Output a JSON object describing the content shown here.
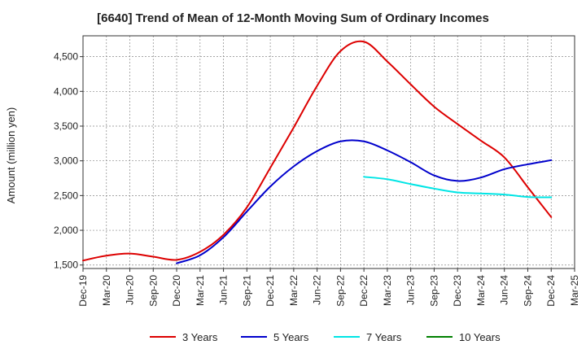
{
  "chart_data": {
    "type": "line",
    "title": "[6640]  Trend of Mean of 12-Month Moving Sum of Ordinary Incomes",
    "xlabel": "",
    "ylabel": "Amount (million yen)",
    "ylim": [
      1450,
      4800
    ],
    "yticks": [
      1500,
      2000,
      2500,
      3000,
      3500,
      4000,
      4500
    ],
    "ytick_labels": [
      "1,500",
      "2,000",
      "2,500",
      "3,000",
      "3,500",
      "4,000",
      "4,500"
    ],
    "categories": [
      "Dec-19",
      "Mar-20",
      "Jun-20",
      "Sep-20",
      "Dec-20",
      "Mar-21",
      "Jun-21",
      "Sep-21",
      "Dec-21",
      "Mar-22",
      "Jun-22",
      "Sep-22",
      "Dec-22",
      "Mar-23",
      "Jun-23",
      "Sep-23",
      "Dec-23",
      "Mar-24",
      "Jun-24",
      "Sep-24",
      "Dec-24",
      "Mar-25"
    ],
    "grid": true,
    "legend_position": "bottom",
    "series": [
      {
        "name": "3 Years",
        "color": "#dd0000",
        "values": [
          1565,
          1635,
          1665,
          1620,
          1575,
          1690,
          1935,
          2330,
          2900,
          3480,
          4080,
          4580,
          4715,
          4430,
          4100,
          3780,
          3530,
          3290,
          3050,
          2620,
          2190,
          null
        ]
      },
      {
        "name": "5 Years",
        "color": "#0000cc",
        "values": [
          null,
          null,
          null,
          null,
          1525,
          1640,
          1900,
          2270,
          2630,
          2920,
          3140,
          3280,
          3280,
          3150,
          2980,
          2790,
          2710,
          2760,
          2880,
          2950,
          3010,
          null
        ]
      },
      {
        "name": "7 Years",
        "color": "#00e5e5",
        "values": [
          null,
          null,
          null,
          null,
          null,
          null,
          null,
          null,
          null,
          null,
          null,
          null,
          2770,
          2735,
          2665,
          2600,
          2545,
          2530,
          2515,
          2480,
          2475,
          null
        ]
      },
      {
        "name": "10 Years",
        "color": "#008000",
        "values": [
          null,
          null,
          null,
          null,
          null,
          null,
          null,
          null,
          null,
          null,
          null,
          null,
          null,
          null,
          null,
          null,
          null,
          null,
          null,
          null,
          null,
          null
        ]
      }
    ]
  }
}
